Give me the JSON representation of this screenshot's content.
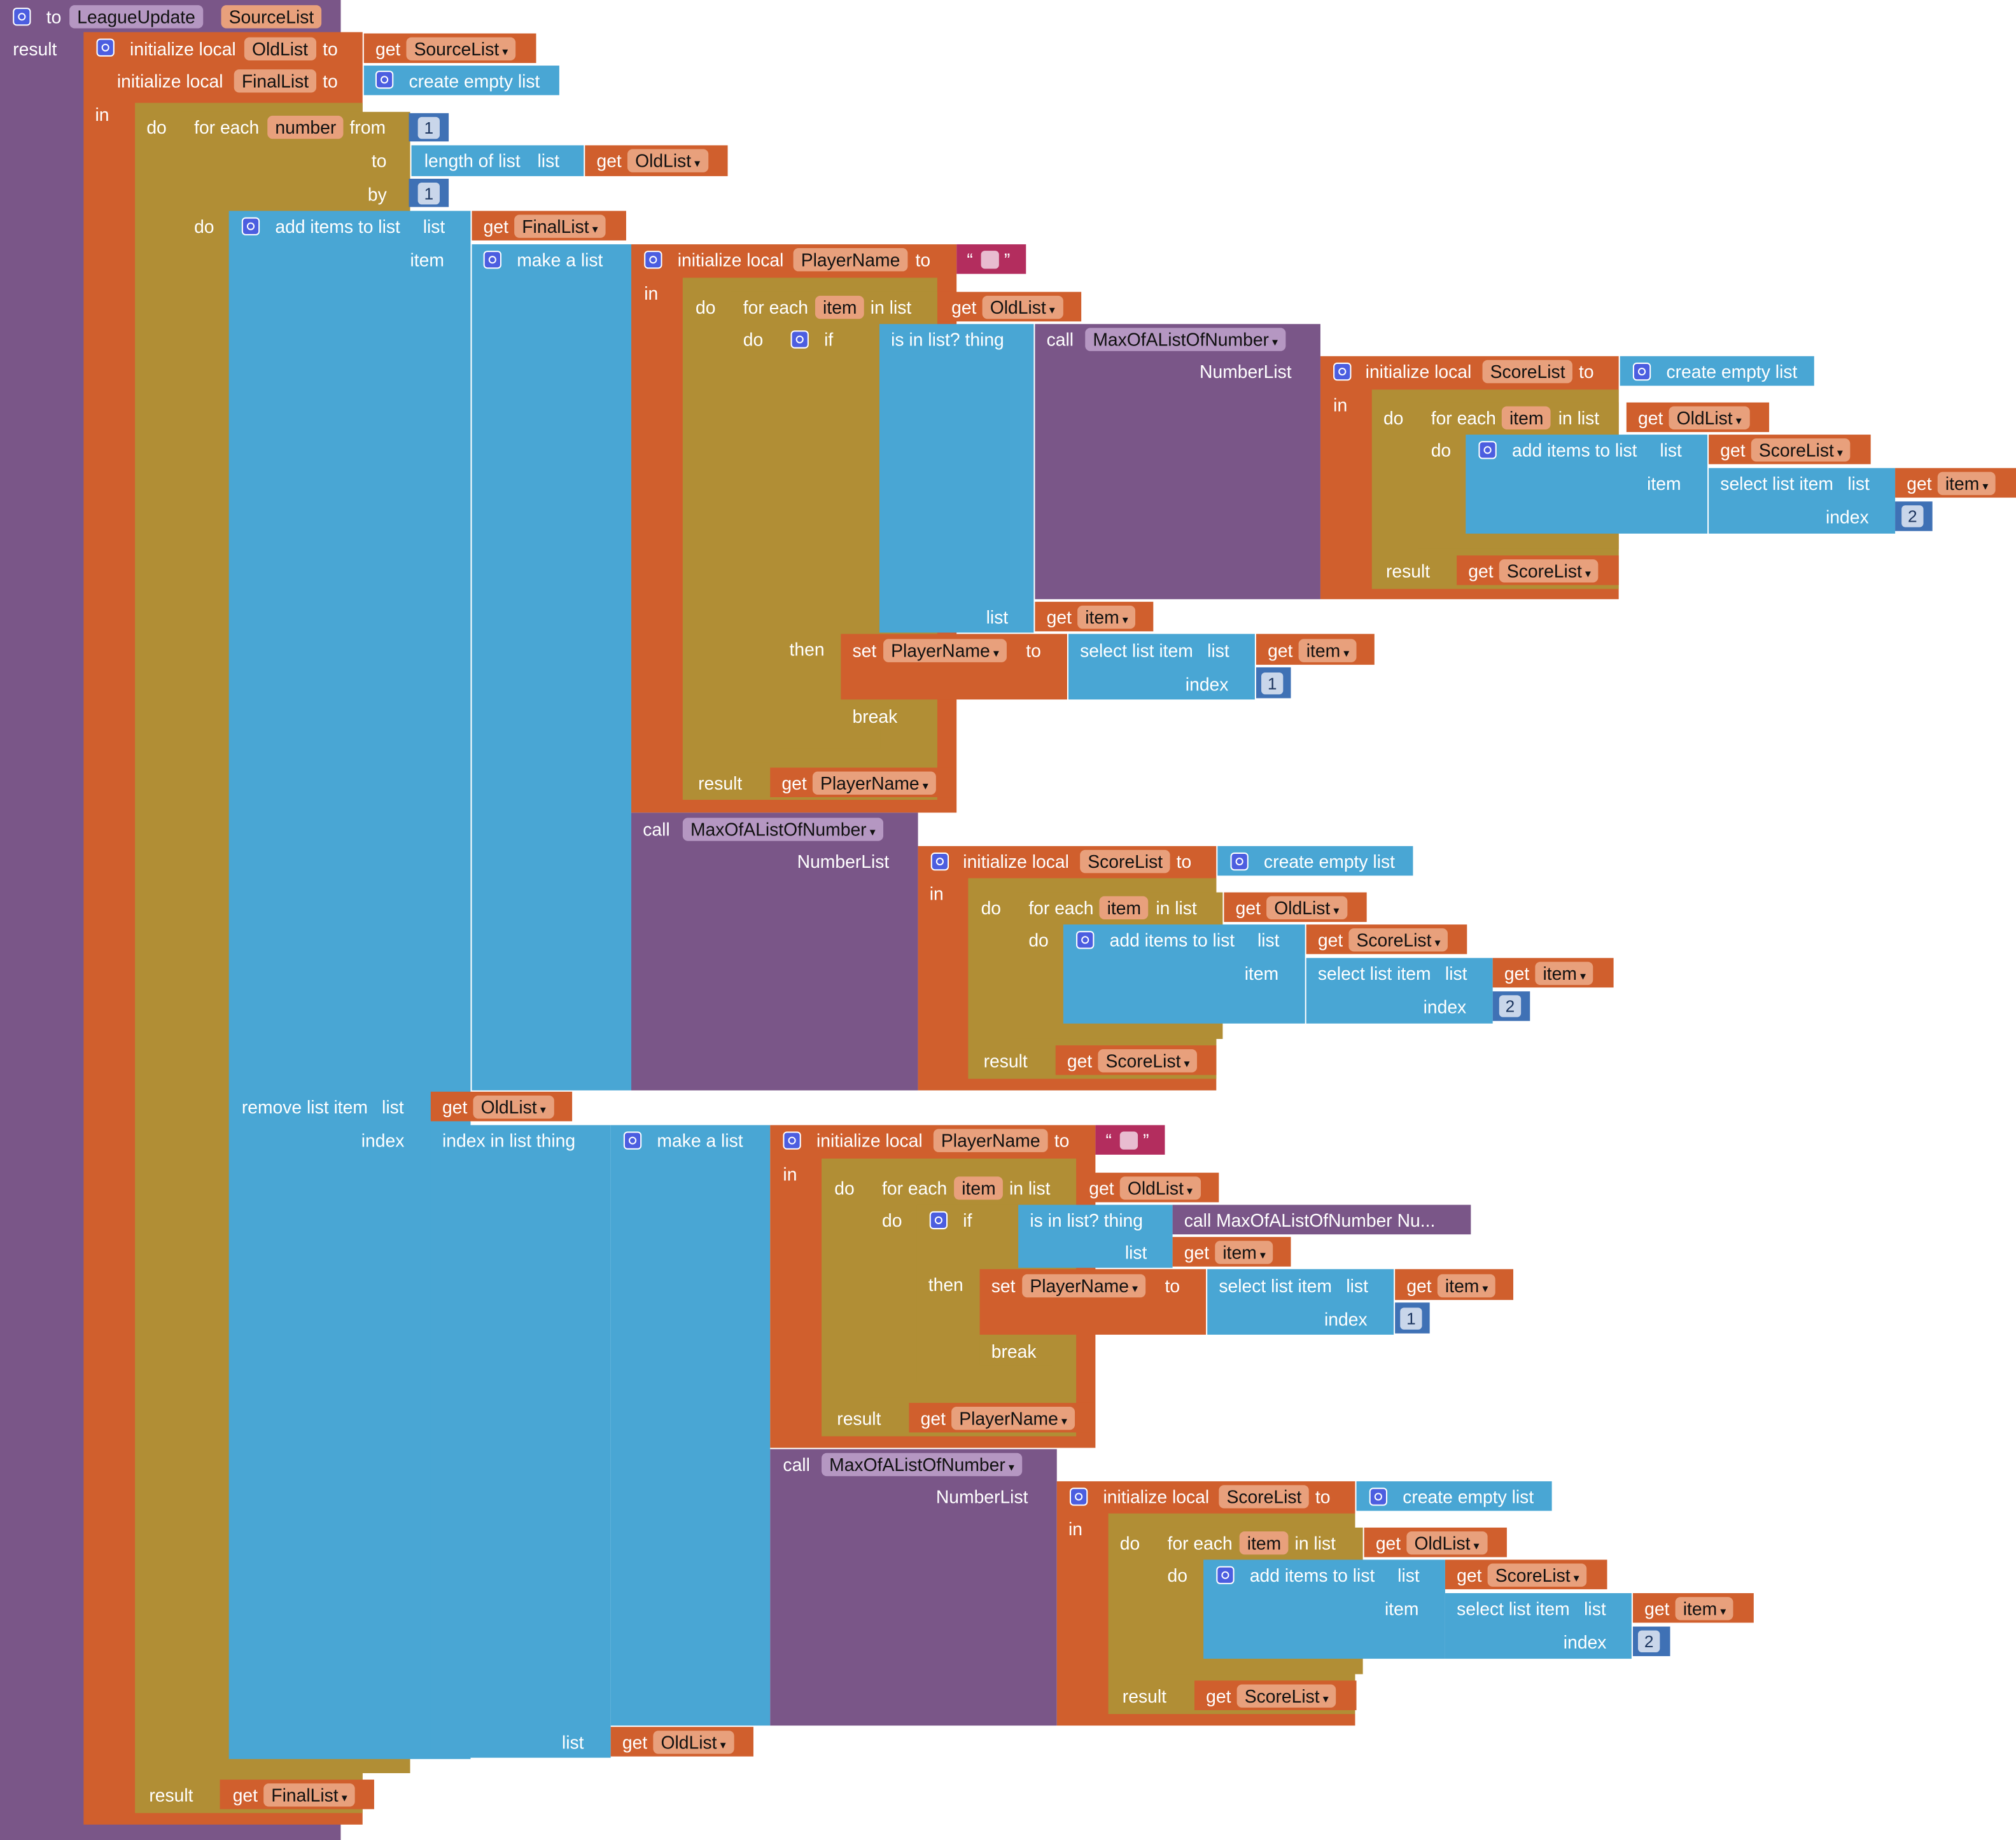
{
  "proc": {
    "to": "to",
    "name": "LeagueUpdate",
    "param": "SourceList",
    "result": "result"
  },
  "kw": {
    "initialize_local": "initialize local",
    "to": "to",
    "in": "in",
    "do": "do",
    "get": "get",
    "for_each": "for each",
    "from": "from",
    "by": "by",
    "in_list": "in list",
    "if": "if",
    "then": "then",
    "break": "break",
    "result": "result",
    "call": "call",
    "set": "set",
    "list": "list",
    "item": "item",
    "index": "index",
    "create_empty_list": "create empty list",
    "add_items_to_list": "add items to list",
    "make_a_list": "make a list",
    "length_of_list": "length of list",
    "select_list_item": "select list item",
    "is_in_list_thing": "is in list? thing",
    "remove_list_item": "remove list item",
    "index_in_list_thing": "index in list thing"
  },
  "vars": {
    "OldList": "OldList",
    "SourceList": "SourceList",
    "FinalList": "FinalList",
    "number": "number",
    "item": "item",
    "PlayerName": "PlayerName",
    "ScoreList": "ScoreList",
    "NumberList": "NumberList"
  },
  "proc_call": {
    "name": "MaxOfAListOfNumber",
    "collapsed": "call  MaxOfAListOfNumber  Nu..."
  },
  "numbers": {
    "one": "1",
    "two": "2"
  },
  "text_quotes": {
    "open": "“",
    "close": "”"
  },
  "colors": {
    "procedure": "#7a5688",
    "variable": "#d05f2d",
    "control": "#b18e35",
    "list": "#49a6d4",
    "math": "#3f71b5",
    "text": "#b32d5e"
  },
  "icons": [
    "gear-icon",
    "dropdown-arrow-icon"
  ]
}
